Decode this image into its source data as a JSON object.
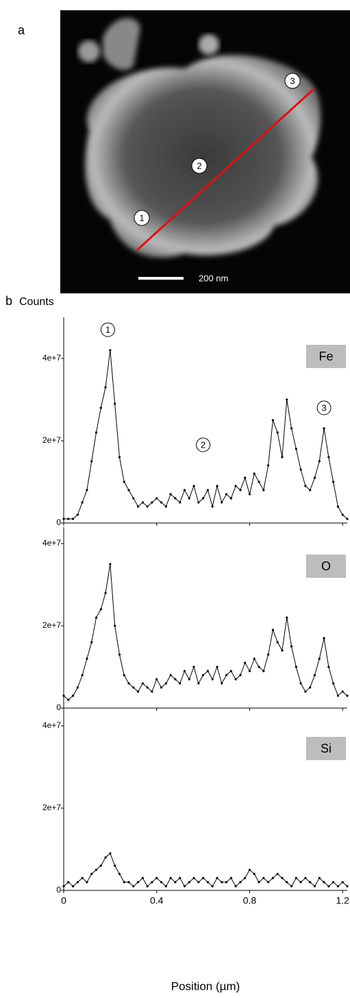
{
  "panel_a": {
    "label": "a",
    "scale_bar": "200 nm",
    "markers": [
      "1",
      "2",
      "3"
    ]
  },
  "panel_b": {
    "label": "b"
  },
  "chart_data": [
    {
      "type": "line",
      "ylabel": "Counts",
      "show_xtick_labels": false,
      "xlim": [
        0,
        1.22
      ],
      "ylim": [
        0,
        50000000.0
      ],
      "xticks": [
        0,
        0.4,
        0.8,
        1.2
      ],
      "yticks": [
        0,
        {
          "value": 20000000,
          "label": "2e+7"
        },
        {
          "value": 40000000,
          "label": "4e+7"
        }
      ],
      "annotations": [
        {
          "text": "1",
          "x": 0.19,
          "y": 47000000.0
        },
        {
          "text": "2",
          "x": 0.6,
          "y": 19000000.0
        },
        {
          "text": "3",
          "x": 1.12,
          "y": 28000000.0
        }
      ],
      "x": [
        0,
        0.02,
        0.04,
        0.06,
        0.08,
        0.1,
        0.12,
        0.14,
        0.16,
        0.18,
        0.2,
        0.22,
        0.24,
        0.26,
        0.28,
        0.3,
        0.32,
        0.34,
        0.36,
        0.38,
        0.4,
        0.42,
        0.44,
        0.46,
        0.48,
        0.5,
        0.52,
        0.54,
        0.56,
        0.58,
        0.6,
        0.62,
        0.64,
        0.66,
        0.68,
        0.7,
        0.72,
        0.74,
        0.76,
        0.78,
        0.8,
        0.82,
        0.84,
        0.86,
        0.88,
        0.9,
        0.92,
        0.94,
        0.96,
        0.98,
        1.0,
        1.02,
        1.04,
        1.06,
        1.08,
        1.1,
        1.12,
        1.14,
        1.16,
        1.18,
        1.2,
        1.22
      ],
      "series": [
        {
          "name": "Fe",
          "color": "#000000",
          "values": [
            1000000.0,
            1000000.0,
            1000000.0,
            2000000.0,
            5000000.0,
            8000000.0,
            15000000.0,
            22000000.0,
            28000000.0,
            33000000.0,
            42000000.0,
            29000000.0,
            16000000.0,
            10000000.0,
            8000000.0,
            6000000.0,
            4000000.0,
            5000000.0,
            4000000.0,
            5000000.0,
            6000000.0,
            5000000.0,
            4000000.0,
            7000000.0,
            6000000.0,
            5000000.0,
            8000000.0,
            6000000.0,
            9000000.0,
            5000000.0,
            6000000.0,
            8000000.0,
            4000000.0,
            9000000.0,
            5000000.0,
            7000000.0,
            6000000.0,
            9000000.0,
            8000000.0,
            11000000.0,
            7000000.0,
            12000000.0,
            10000000.0,
            8000000.0,
            14000000.0,
            25000000.0,
            22000000.0,
            16000000.0,
            30000000.0,
            23000000.0,
            18000000.0,
            13000000.0,
            9000000.0,
            8000000.0,
            11000000.0,
            15000000.0,
            23000000.0,
            16000000.0,
            10000000.0,
            4000000.0,
            2000000.0,
            1000000.0
          ]
        }
      ]
    },
    {
      "type": "line",
      "show_xtick_labels": false,
      "xlim": [
        0,
        1.22
      ],
      "ylim": [
        0,
        44000000.0
      ],
      "xticks": [
        0,
        0.4,
        0.8,
        1.2
      ],
      "yticks": [
        0,
        {
          "value": 20000000,
          "label": "2e+7"
        },
        {
          "value": 40000000,
          "label": "4e+7"
        }
      ],
      "x": [
        0,
        0.02,
        0.04,
        0.06,
        0.08,
        0.1,
        0.12,
        0.14,
        0.16,
        0.18,
        0.2,
        0.22,
        0.24,
        0.26,
        0.28,
        0.3,
        0.32,
        0.34,
        0.36,
        0.38,
        0.4,
        0.42,
        0.44,
        0.46,
        0.48,
        0.5,
        0.52,
        0.54,
        0.56,
        0.58,
        0.6,
        0.62,
        0.64,
        0.66,
        0.68,
        0.7,
        0.72,
        0.74,
        0.76,
        0.78,
        0.8,
        0.82,
        0.84,
        0.86,
        0.88,
        0.9,
        0.92,
        0.94,
        0.96,
        0.98,
        1.0,
        1.02,
        1.04,
        1.06,
        1.08,
        1.1,
        1.12,
        1.14,
        1.16,
        1.18,
        1.2,
        1.22
      ],
      "series": [
        {
          "name": "O",
          "color": "#000000",
          "values": [
            3000000.0,
            2000000.0,
            3000000.0,
            5000000.0,
            8000000.0,
            12000000.0,
            16000000.0,
            22000000.0,
            24000000.0,
            28000000.0,
            35000000.0,
            20000000.0,
            13000000.0,
            8000000.0,
            6000000.0,
            5000000.0,
            4000000.0,
            6000000.0,
            5000000.0,
            4000000.0,
            7000000.0,
            5000000.0,
            6000000.0,
            8000000.0,
            7000000.0,
            6000000.0,
            9000000.0,
            7000000.0,
            10000000.0,
            6000000.0,
            8000000.0,
            9000000.0,
            7000000.0,
            10000000.0,
            6000000.0,
            8000000.0,
            9000000.0,
            7000000.0,
            8000000.0,
            11000000.0,
            9000000.0,
            12000000.0,
            10000000.0,
            9000000.0,
            13000000.0,
            19000000.0,
            16000000.0,
            14000000.0,
            22000000.0,
            15000000.0,
            10000000.0,
            6000000.0,
            4000000.0,
            5000000.0,
            8000000.0,
            12000000.0,
            17000000.0,
            10000000.0,
            6000000.0,
            3000000.0,
            4000000.0,
            3000000.0
          ]
        }
      ]
    },
    {
      "type": "line",
      "show_xtick_labels": true,
      "xlabel": "Position (µm)",
      "xlim": [
        0,
        1.22
      ],
      "ylim": [
        0,
        44000000.0
      ],
      "xticks": [
        0,
        0.4,
        0.8,
        1.2
      ],
      "yticks": [
        0,
        {
          "value": 20000000,
          "label": "2e+7"
        },
        {
          "value": 40000000,
          "label": "4e+7"
        }
      ],
      "x": [
        0,
        0.02,
        0.04,
        0.06,
        0.08,
        0.1,
        0.12,
        0.14,
        0.16,
        0.18,
        0.2,
        0.22,
        0.24,
        0.26,
        0.28,
        0.3,
        0.32,
        0.34,
        0.36,
        0.38,
        0.4,
        0.42,
        0.44,
        0.46,
        0.48,
        0.5,
        0.52,
        0.54,
        0.56,
        0.58,
        0.6,
        0.62,
        0.64,
        0.66,
        0.68,
        0.7,
        0.72,
        0.74,
        0.76,
        0.78,
        0.8,
        0.82,
        0.84,
        0.86,
        0.88,
        0.9,
        0.92,
        0.94,
        0.96,
        0.98,
        1.0,
        1.02,
        1.04,
        1.06,
        1.08,
        1.1,
        1.12,
        1.14,
        1.16,
        1.18,
        1.2,
        1.22
      ],
      "series": [
        {
          "name": "Si",
          "color": "#000000",
          "values": [
            1000000.0,
            2000000.0,
            1000000.0,
            2000000.0,
            3000000.0,
            2000000.0,
            4000000.0,
            5000000.0,
            6000000.0,
            8000000.0,
            9000000.0,
            6000000.0,
            4000000.0,
            2000000.0,
            2000000.0,
            1000000.0,
            2000000.0,
            3000000.0,
            1000000.0,
            2000000.0,
            3000000.0,
            2000000.0,
            1000000.0,
            3000000.0,
            2000000.0,
            3000000.0,
            1000000.0,
            2000000.0,
            3000000.0,
            2000000.0,
            3000000.0,
            2000000.0,
            1000000.0,
            3000000.0,
            2000000.0,
            2000000.0,
            3000000.0,
            1000000.0,
            2000000.0,
            3000000.0,
            5000000.0,
            4000000.0,
            2000000.0,
            3000000.0,
            2000000.0,
            3000000.0,
            4000000.0,
            3000000.0,
            2000000.0,
            1000000.0,
            3000000.0,
            2000000.0,
            3000000.0,
            2000000.0,
            1000000.0,
            3000000.0,
            2000000.0,
            1000000.0,
            2000000.0,
            1000000.0,
            2000000.0,
            1000000.0
          ]
        }
      ]
    }
  ]
}
